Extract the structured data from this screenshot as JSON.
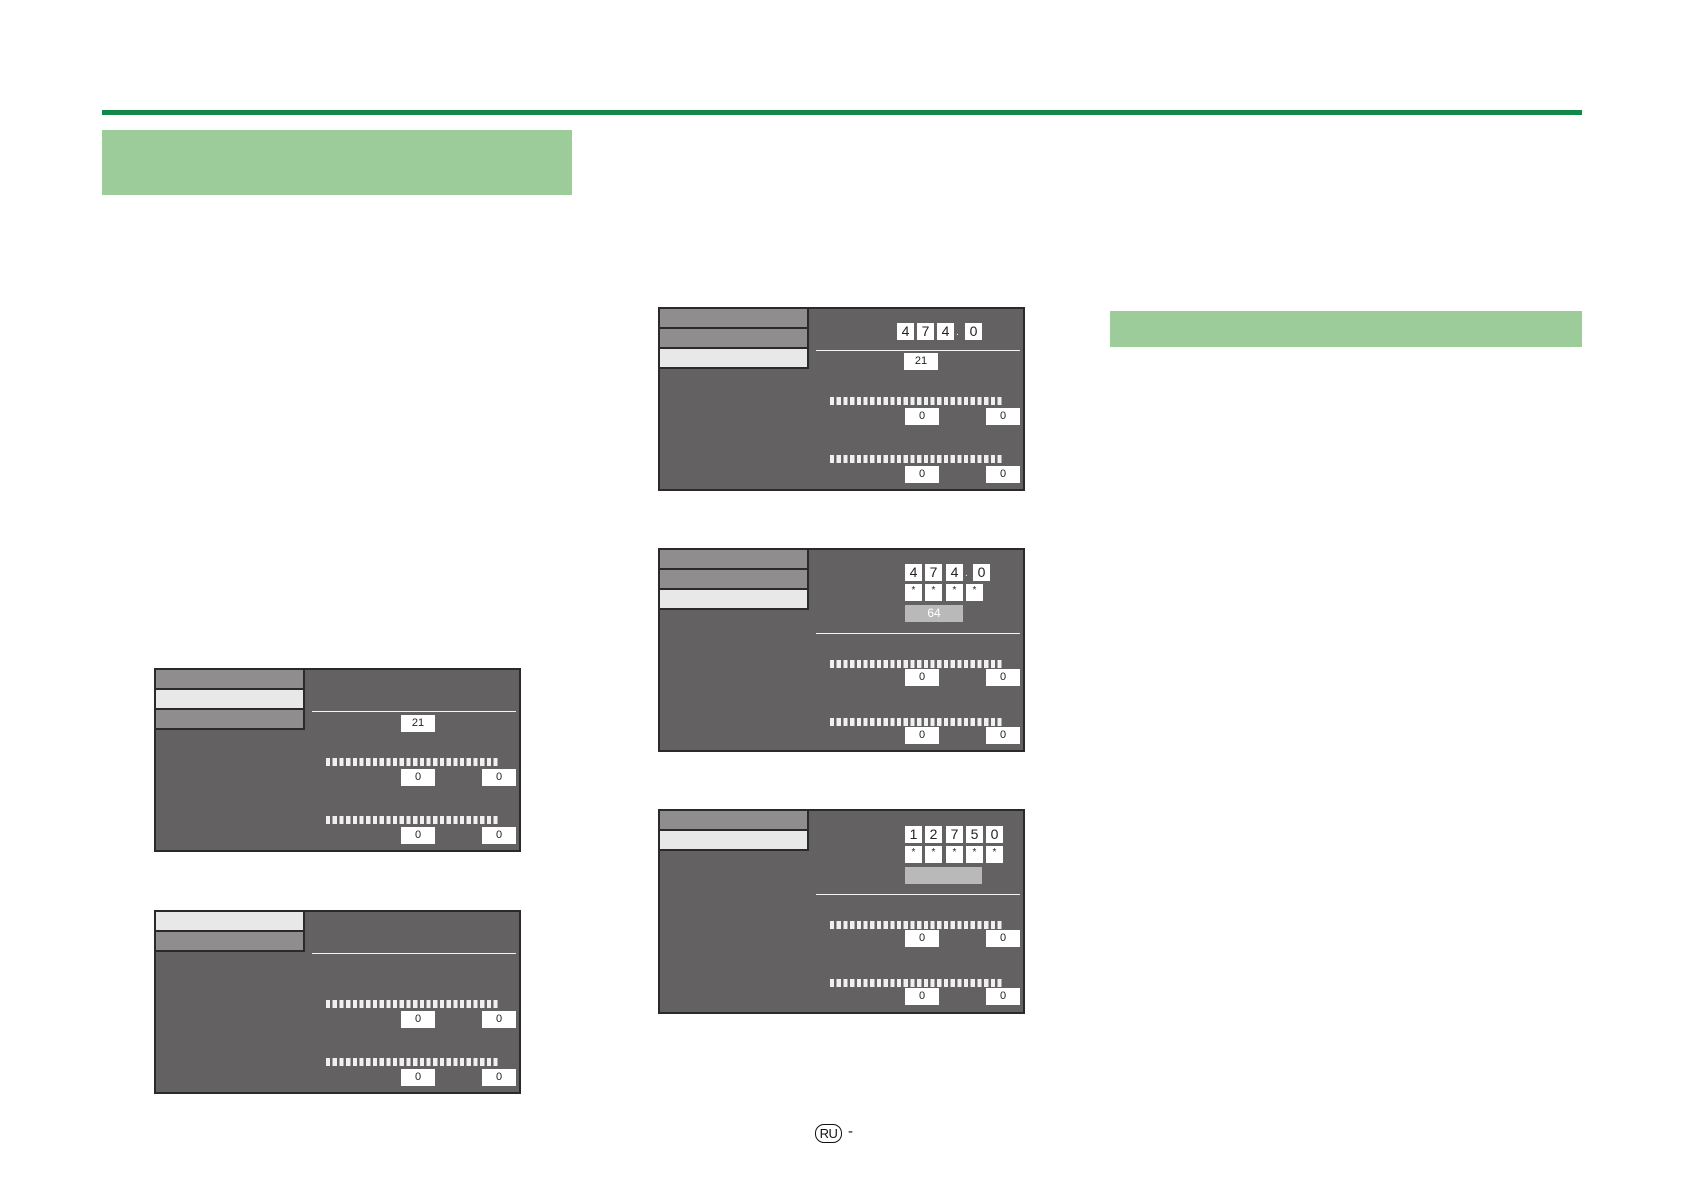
{
  "colors": {
    "accent_rule": "#12884a",
    "section_band": "#9ccc9a",
    "panel_bg": "#636161",
    "menu_dark": "#8f8d8d",
    "menu_light": "#e8e8e8"
  },
  "panels": [
    {
      "id": "a",
      "menu": [
        "dark",
        "light",
        "dark"
      ],
      "channel": "21",
      "rows": [
        [
          "0",
          "0"
        ],
        [
          "0",
          "0"
        ]
      ]
    },
    {
      "id": "b",
      "menu": [
        "light",
        "dark"
      ],
      "rows": [
        [
          "0",
          "0"
        ],
        [
          "0",
          "0"
        ]
      ]
    },
    {
      "id": "c",
      "menu": [
        "dark",
        "dark",
        "light"
      ],
      "frequency": [
        "4",
        "7",
        "4"
      ],
      "frequency_decimal": "0",
      "channel": "21",
      "rows": [
        [
          "0",
          "0"
        ],
        [
          "0",
          "0"
        ]
      ]
    },
    {
      "id": "d",
      "menu": [
        "dark",
        "dark",
        "light"
      ],
      "frequency": [
        "4",
        "7",
        "4"
      ],
      "frequency_decimal": "0",
      "password": [
        "*",
        "*",
        "*",
        "*"
      ],
      "highlight": "64",
      "rows": [
        [
          "0",
          "0"
        ],
        [
          "0",
          "0"
        ]
      ]
    },
    {
      "id": "e",
      "menu": [
        "dark",
        "light"
      ],
      "frequency": [
        "1",
        "2",
        "7",
        "5",
        "0"
      ],
      "password": [
        "*",
        "*",
        "*",
        "*",
        "*"
      ],
      "highlight": "",
      "rows": [
        [
          "0",
          "0"
        ],
        [
          "0",
          "0"
        ]
      ]
    }
  ],
  "footer": {
    "language_badge": "RU",
    "page_separator": "-"
  }
}
